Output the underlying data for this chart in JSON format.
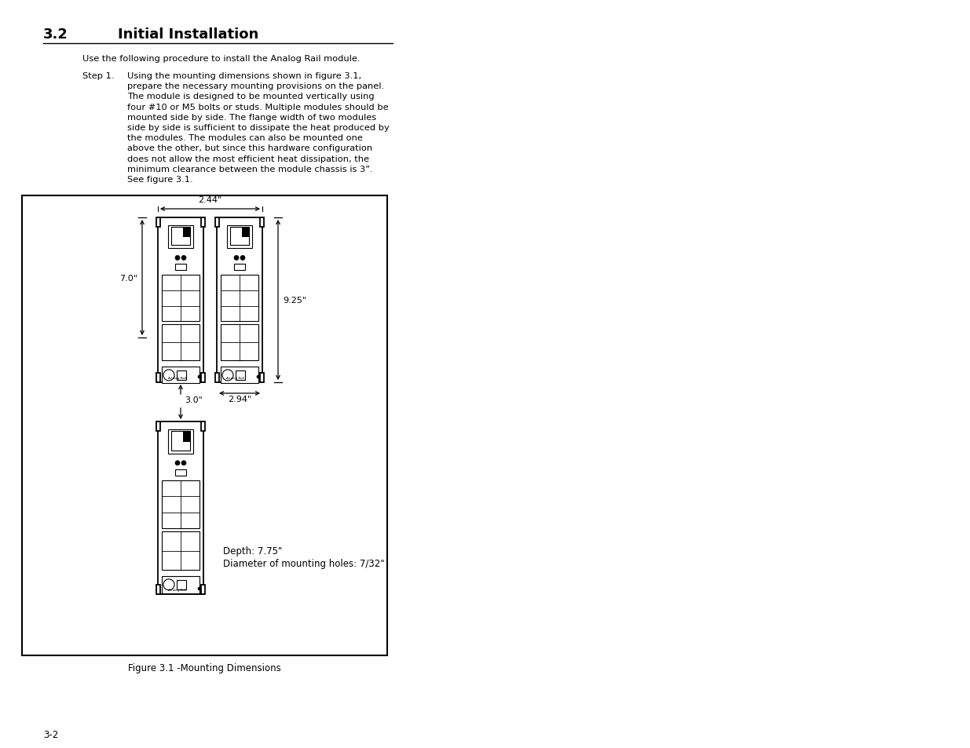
{
  "title_section": "3.2",
  "title_text": "Initial Installation",
  "body_text": "Use the following procedure to install the Analog Rail module.",
  "step_label": "Step 1.",
  "step_text": "Using the mounting dimensions shown in figure 3.1,\nprepare the necessary mounting provisions on the panel.\nThe module is designed to be mounted vertically using\nfour #10 or M5 bolts or studs. Multiple modules should be\nmounted side by side. The flange width of two modules\nside by side is sufficient to dissipate the heat produced by\nthe modules. The modules can also be mounted one\nabove the other, but since this hardware configuration\ndoes not allow the most efficient heat dissipation, the\nminimum clearance between the module chassis is 3”.\nSee figure 3.1.",
  "figure_caption": "Figure 3.1 -Mounting Dimensions",
  "dim_244": "2.44\"",
  "dim_70": "7.0\"",
  "dim_925": "9.25\"",
  "dim_294": "2.94\"",
  "dim_30": "3.0\"",
  "depth_text": "Depth: 7.75\"",
  "hole_text": "Diameter of mounting holes: 7/32\"",
  "page_num": "3-2",
  "bg_color": "#ffffff",
  "text_color": "#000000",
  "line_color": "#000000"
}
